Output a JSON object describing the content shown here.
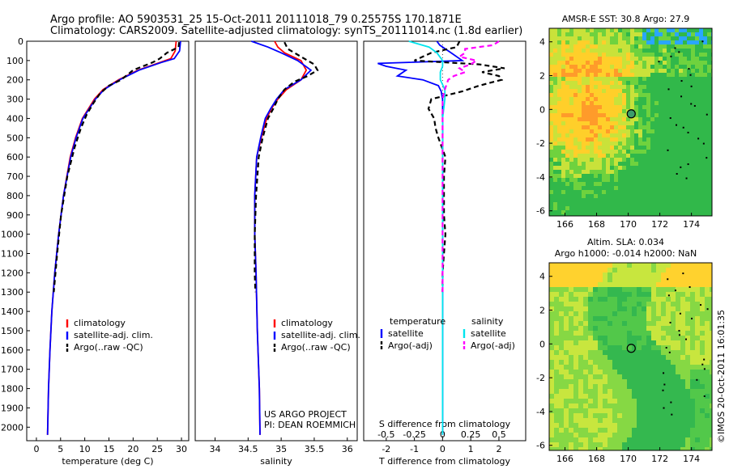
{
  "header": {
    "title_line1": "Argo profile: AO 5903531_25 15-Oct-2011 20111018_79 0.25575S 170.1871E",
    "title_line2": "Climatology: CARS2009. Satellite-adjusted climatology: synTS_20111014.nc (1.8d earlier)"
  },
  "footer": {
    "credit": "US ARGO PROJECT",
    "pi": "PI: DEAN ROEMMICH",
    "imos": "©IMOS 20-Oct-2011 16:01:35"
  },
  "colors": {
    "climatology": "#ff0000",
    "satellite": "#0000ff",
    "argo": "#000000",
    "sal_satellite": "#00e5ee",
    "sal_argo": "#ff00ff"
  },
  "chart_data": [
    {
      "id": "temperature",
      "type": "line",
      "xlabel": "temperature (deg C)",
      "ylabel": "",
      "xlim": [
        -2,
        31.5
      ],
      "ylim": [
        2070,
        0
      ],
      "xticks": [
        0,
        5,
        10,
        15,
        20,
        25,
        30
      ],
      "yticks": [
        0,
        100,
        200,
        300,
        400,
        500,
        600,
        700,
        800,
        900,
        1000,
        1100,
        1200,
        1300,
        1400,
        1500,
        1600,
        1700,
        1800,
        1900,
        2000
      ],
      "legend": [
        "climatology",
        "satellite-adj. clim.",
        "Argo(..raw -QC)"
      ],
      "series": [
        {
          "name": "climatology",
          "color": "#ff0000",
          "dash": "",
          "depth": [
            0,
            50,
            90,
            110,
            150,
            200,
            250,
            300,
            400,
            500,
            600,
            800,
            1000,
            1200,
            1400,
            1600,
            1800,
            2040
          ],
          "values": [
            28.9,
            28.7,
            27.8,
            25.5,
            21,
            17,
            13.8,
            12,
            9.5,
            8.1,
            7,
            5.6,
            4.6,
            3.8,
            3.2,
            2.8,
            2.5,
            2.3
          ]
        },
        {
          "name": "satellite-adj. clim.",
          "color": "#0000ff",
          "dash": "",
          "depth": [
            0,
            50,
            90,
            110,
            150,
            200,
            250,
            300,
            400,
            500,
            600,
            800,
            1000,
            1200,
            1400,
            1600,
            1800,
            2040
          ],
          "values": [
            29.8,
            29.6,
            28.5,
            25.8,
            21.2,
            17.2,
            14,
            12.2,
            9.6,
            8.2,
            7.1,
            5.6,
            4.6,
            3.8,
            3.2,
            2.8,
            2.5,
            2.3
          ]
        },
        {
          "name": "Argo(..raw -QC)",
          "color": "#000000",
          "dash": "6,4",
          "depth": [
            5,
            30,
            60,
            90,
            110,
            130,
            150,
            170,
            200,
            230,
            270,
            320,
            380,
            450,
            550,
            700,
            900,
            1100,
            1300
          ],
          "values": [
            29.5,
            29.4,
            27,
            25.5,
            24,
            22,
            20,
            19,
            17.5,
            15,
            13.2,
            11.8,
            10.4,
            9.2,
            7.9,
            6.4,
            5.1,
            4.3,
            3.6
          ]
        }
      ]
    },
    {
      "id": "salinity",
      "type": "line",
      "xlabel": "salinity",
      "ylabel": "",
      "xlim": [
        33.7,
        36.15
      ],
      "ylim": [
        2070,
        0
      ],
      "xticks": [
        34,
        34.5,
        35,
        35.5,
        36
      ],
      "xticklabels": [
        "34",
        "34.5",
        "35",
        "35.5",
        "36"
      ],
      "legend": [
        "climatology",
        "satellite-adj. clim.",
        "Argo(..raw -QC)"
      ],
      "series": [
        {
          "name": "climatology",
          "color": "#ff0000",
          "dash": "",
          "depth": [
            0,
            30,
            60,
            100,
            150,
            200,
            250,
            300,
            350,
            400,
            500,
            600,
            800,
            1000,
            1200,
            1500,
            1800,
            2040
          ],
          "values": [
            34.9,
            34.95,
            35.05,
            35.3,
            35.38,
            35.3,
            35.08,
            34.95,
            34.85,
            34.78,
            34.7,
            34.63,
            34.6,
            34.6,
            34.62,
            34.64,
            34.67,
            34.68
          ]
        },
        {
          "name": "satellite-adj. clim.",
          "color": "#0000ff",
          "dash": "",
          "depth": [
            0,
            30,
            60,
            100,
            150,
            200,
            250,
            300,
            350,
            400,
            500,
            600,
            800,
            1000,
            1200,
            1500,
            1800,
            2040
          ],
          "values": [
            34.55,
            34.8,
            35.0,
            35.25,
            35.45,
            35.3,
            35.05,
            34.93,
            34.84,
            34.76,
            34.69,
            34.63,
            34.6,
            34.6,
            34.62,
            34.64,
            34.67,
            34.68
          ]
        },
        {
          "name": "Argo(..raw -QC)",
          "color": "#000000",
          "dash": "6,4",
          "depth": [
            5,
            40,
            80,
            120,
            150,
            180,
            210,
            250,
            300,
            350,
            400,
            500,
            600,
            800,
            1000,
            1200,
            1300
          ],
          "values": [
            35.05,
            35.1,
            35.3,
            35.5,
            35.55,
            35.4,
            35.2,
            35.05,
            34.95,
            34.88,
            34.8,
            34.72,
            34.66,
            34.62,
            34.6,
            34.6,
            34.61
          ]
        }
      ]
    },
    {
      "id": "difference",
      "type": "line",
      "xlabel": "T difference from climatology",
      "xlabel_top": "S difference from climatology",
      "xlim": [
        -2.8,
        2.95
      ],
      "ylim": [
        2070,
        0
      ],
      "xticks": [
        -2,
        -1,
        0,
        1,
        2
      ],
      "xticks_s": [
        -0.5,
        -0.25,
        0,
        0.25,
        0.5
      ],
      "xticklabels_s": [
        "-0.5",
        "-0.25",
        "0",
        "0.25",
        "0.5"
      ],
      "legend_temperature": [
        "temperature",
        "satellite",
        "Argo(-adj)"
      ],
      "legend_salinity": [
        "salinity",
        "satellite",
        "Argo(-adj)"
      ],
      "series": [
        {
          "name": "T satellite",
          "color": "#0000ff",
          "dash": "",
          "depth": [
            0,
            20,
            60,
            100,
            115,
            130,
            150,
            180,
            200,
            230,
            260,
            300,
            400,
            600,
            800,
            1000,
            1500,
            2040
          ],
          "values": [
            -0.2,
            -0.1,
            0.3,
            0.7,
            -2.3,
            -2.0,
            -1.3,
            -1.6,
            -0.7,
            -0.15,
            -0.05,
            0,
            0,
            0,
            0,
            0,
            0,
            0
          ]
        },
        {
          "name": "T Argo(-adj)",
          "color": "#000000",
          "dash": "6,4",
          "depth": [
            0,
            30,
            60,
            100,
            120,
            140,
            160,
            180,
            200,
            230,
            260,
            300,
            350,
            400,
            450,
            500,
            600,
            700,
            800,
            900,
            1000,
            1100,
            1200,
            1300
          ],
          "values": [
            0.6,
            0.5,
            -0.4,
            -1.0,
            1.3,
            2.2,
            1.4,
            2.0,
            2.1,
            1.3,
            0.7,
            -0.4,
            -0.5,
            -0.3,
            -0.25,
            -0.15,
            0.1,
            0.05,
            0.05,
            0.05,
            0.1,
            0.05,
            0,
            0
          ]
        },
        {
          "name": "S satellite",
          "color": "#00e5ee",
          "dash": "",
          "depth": [
            0,
            30,
            60,
            100,
            130,
            160,
            200,
            250,
            300,
            400,
            600,
            1000,
            1500,
            2040
          ],
          "values": [
            -0.3,
            -0.12,
            -0.05,
            0,
            0,
            -0.02,
            -0.02,
            0.02,
            0.02,
            0,
            0,
            0,
            0,
            0
          ]
        },
        {
          "name": "S Argo(-adj)",
          "color": "#ff00ff",
          "dash": "6,4",
          "depth": [
            0,
            20,
            40,
            60,
            80,
            100,
            120,
            140,
            160,
            180,
            200,
            250,
            300,
            400,
            600,
            800,
            1000,
            1200,
            1300
          ],
          "values": [
            0.5,
            0.45,
            0.2,
            0.2,
            0.15,
            0.3,
            0.25,
            0.15,
            0.2,
            0.1,
            0.05,
            0.02,
            0,
            0,
            0,
            0,
            0,
            0,
            0
          ]
        }
      ]
    },
    {
      "id": "sst_map",
      "type": "heatmap",
      "title": "AMSR-E SST: 30.8 Argo: 27.9",
      "xlim": [
        165,
        175.3
      ],
      "ylim": [
        -6.3,
        4.8
      ],
      "xticks": [
        166,
        168,
        170,
        172,
        174
      ],
      "yticks": [
        -6,
        -4,
        -2,
        0,
        2,
        4
      ],
      "marker": {
        "lon": 170.19,
        "lat": -0.26
      }
    },
    {
      "id": "sla_map",
      "type": "heatmap",
      "title_line1": "Altim. SLA: 0.034",
      "title_line2": "Argo h1000: -0.014 h2000: NaN",
      "xlim": [
        165,
        175.3
      ],
      "ylim": [
        -6.3,
        4.8
      ],
      "xticks": [
        166,
        168,
        170,
        172,
        174
      ],
      "yticks": [
        -6,
        -4,
        -2,
        0,
        2,
        4
      ],
      "marker": {
        "lon": 170.19,
        "lat": -0.26
      }
    }
  ]
}
